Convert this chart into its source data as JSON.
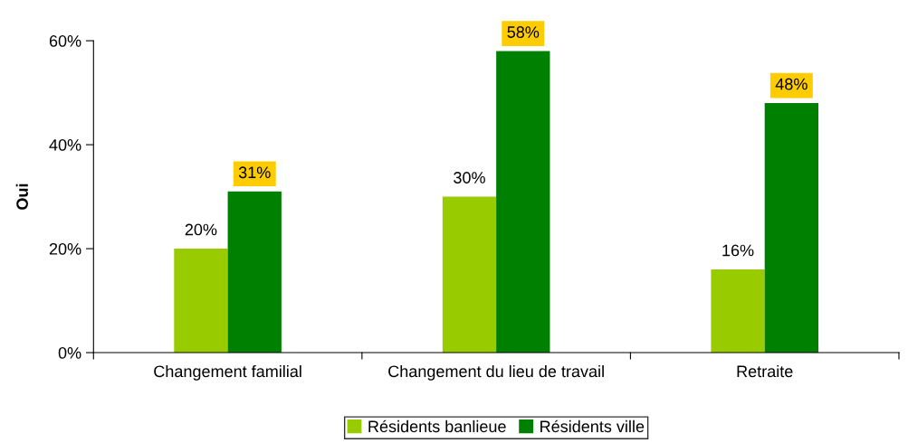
{
  "chart_data": {
    "type": "bar",
    "ylabel": "Oui",
    "categories": [
      "Changement familial",
      "Changement du lieu de travail",
      "Retraite"
    ],
    "series": [
      {
        "name": "Résidents banlieue",
        "color": "#99cc00",
        "values": [
          20,
          30,
          16
        ],
        "value_labels": [
          "20%",
          "30%",
          "16%"
        ]
      },
      {
        "name": "Résidents ville",
        "color": "#008000",
        "values": [
          31,
          58,
          48
        ],
        "value_labels": [
          "31%",
          "58%",
          "48%"
        ]
      }
    ],
    "ylim": [
      0,
      60
    ],
    "yticks": [
      {
        "value": 0,
        "label": "0%"
      },
      {
        "value": 20,
        "label": "20%"
      },
      {
        "value": 40,
        "label": "40%"
      },
      {
        "value": 60,
        "label": "60%"
      }
    ],
    "grid": false,
    "legend": "bottom"
  }
}
